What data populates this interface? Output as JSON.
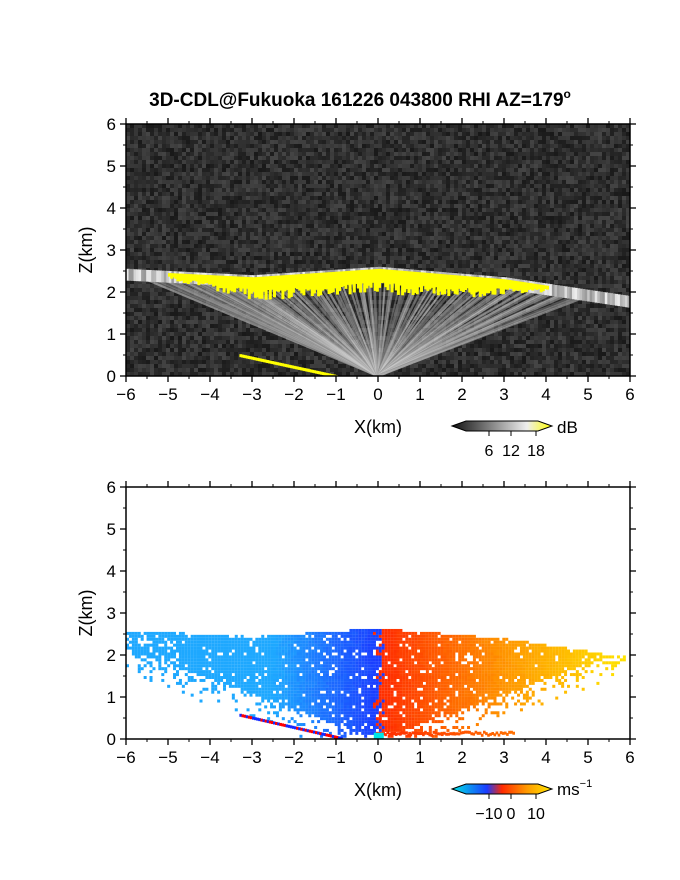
{
  "title": {
    "text": "3D-CDL@Fukuoka 161226 043800 RHI AZ=179",
    "superscript": "o"
  },
  "chart_data": [
    {
      "type": "heatmap",
      "name": "backscatter-panel",
      "xlabel": "X(km)",
      "ylabel": "Z(km)",
      "xlim": [
        -6,
        6
      ],
      "ylim": [
        0,
        6
      ],
      "x_ticks": [
        "-6",
        "-5",
        "-4",
        "-3",
        "-2",
        "-1",
        "0",
        "1",
        "2",
        "3",
        "4",
        "5",
        "6"
      ],
      "y_ticks": [
        "0",
        "1",
        "2",
        "3",
        "4",
        "5",
        "6"
      ],
      "colorbar": {
        "unit": "dB",
        "ticks": [
          "6",
          "12",
          "18"
        ],
        "colormap": "grayscale-to-yellow"
      },
      "features": {
        "background": "noise",
        "layer_top_km": {
          "x": [
            -6,
            -3,
            0,
            3,
            6
          ],
          "z": [
            2.5,
            2.35,
            2.55,
            2.3,
            1.85
          ]
        },
        "yellow_band_x_km": [
          -5,
          4
        ],
        "low_level_streak_x_km": [
          -3.3,
          -1.0
        ]
      },
      "colors": {
        "high": "#ffff00",
        "background": "#2a2a2a"
      }
    },
    {
      "type": "heatmap",
      "name": "doppler-velocity-panel",
      "xlabel": "X(km)",
      "ylabel": "Z(km)",
      "xlim": [
        -6,
        6
      ],
      "ylim": [
        0,
        6
      ],
      "x_ticks": [
        "-6",
        "-5",
        "-4",
        "-3",
        "-2",
        "-1",
        "0",
        "1",
        "2",
        "3",
        "4",
        "5",
        "6"
      ],
      "y_ticks": [
        "0",
        "1",
        "2",
        "3",
        "4",
        "5",
        "6"
      ],
      "colorbar": {
        "unit": "ms",
        "unit_exponent": "−1",
        "ticks": [
          "−10",
          "0",
          "10"
        ],
        "range": [
          -10,
          10
        ],
        "colormap": "cyan-blue-red-yellow"
      },
      "features": {
        "negative_side_x_km": [
          -6,
          0
        ],
        "positive_side_x_km": [
          0,
          6
        ],
        "top_km": 2.6
      },
      "colors": {
        "neg": "#1ea8ff",
        "zero": "#1a3bff",
        "pos": "#ff2a00",
        "max": "#ffe800"
      }
    }
  ]
}
